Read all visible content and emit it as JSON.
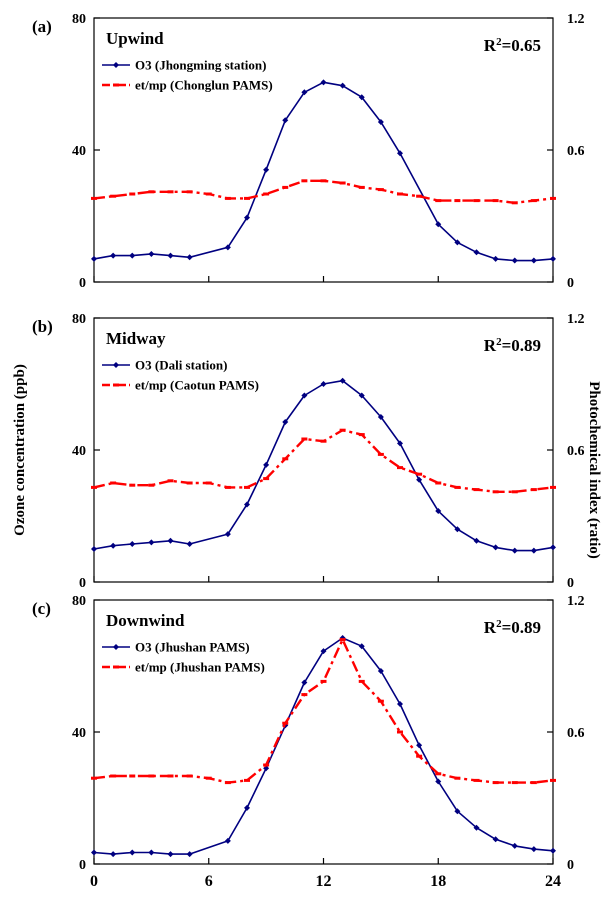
{
  "colors": {
    "o3": "#000080",
    "ratio": "#ff0000"
  },
  "figure": {
    "ylabel_left": "Ozone concentration (ppb)",
    "ylabel_right": "Photochemical index (ratio)",
    "xticks": [
      "0",
      "6",
      "12",
      "18",
      "24"
    ]
  },
  "chart_data": [
    {
      "type": "line",
      "panel_label": "(a)",
      "title": "Upwind",
      "r2": "R",
      "r2_sup": "2",
      "r2_value": "=0.65",
      "xlim": [
        0,
        24
      ],
      "ylim_left": [
        0,
        80
      ],
      "ylim_right": [
        0,
        1.2
      ],
      "yticks_left": [
        "0",
        "40",
        "80"
      ],
      "yticks_right": [
        "0",
        "0.6",
        "1.2"
      ],
      "legend_position": "top-left",
      "series": [
        {
          "name": "O3 (Jhongming station)",
          "axis": "left",
          "style": "solid-diamond",
          "x": [
            0,
            1,
            2,
            3,
            4,
            5,
            7,
            8,
            9,
            10,
            11,
            12,
            13,
            14,
            15,
            16,
            18,
            19,
            20,
            21,
            22,
            23,
            24
          ],
          "y": [
            7,
            8,
            8,
            8.5,
            8,
            7.5,
            10.5,
            19.5,
            34,
            49,
            57.5,
            60.5,
            59.5,
            56,
            48.5,
            39,
            17.5,
            12,
            9,
            7,
            6.5,
            6.5,
            7
          ]
        },
        {
          "name": "et/mp (Chonglun PAMS)",
          "axis": "right",
          "style": "dashdot-dash",
          "x": [
            0,
            1,
            2,
            3,
            4,
            5,
            6,
            7,
            8,
            9,
            10,
            11,
            12,
            13,
            14,
            15,
            16,
            17,
            18,
            19,
            20,
            21,
            22,
            23,
            24
          ],
          "y": [
            0.38,
            0.39,
            0.4,
            0.41,
            0.41,
            0.41,
            0.4,
            0.38,
            0.38,
            0.4,
            0.43,
            0.46,
            0.46,
            0.45,
            0.43,
            0.42,
            0.4,
            0.39,
            0.37,
            0.37,
            0.37,
            0.37,
            0.36,
            0.37,
            0.38
          ]
        }
      ]
    },
    {
      "type": "line",
      "panel_label": "(b)",
      "title": "Midway",
      "r2": "R",
      "r2_sup": "2",
      "r2_value": "=0.89",
      "xlim": [
        0,
        24
      ],
      "ylim_left": [
        0,
        80
      ],
      "ylim_right": [
        0,
        1.2
      ],
      "yticks_left": [
        "0",
        "40",
        "80"
      ],
      "yticks_right": [
        "0",
        "0.6",
        "1.2"
      ],
      "legend_position": "top-left",
      "series": [
        {
          "name": "O3 (Dali station)",
          "axis": "left",
          "style": "solid-diamond",
          "x": [
            0,
            1,
            2,
            3,
            4,
            5,
            7,
            8,
            9,
            10,
            11,
            12,
            13,
            14,
            15,
            16,
            17,
            18,
            19,
            20,
            21,
            22,
            23,
            24
          ],
          "y": [
            10,
            11,
            11.5,
            12,
            12.5,
            11.5,
            14.5,
            23.5,
            35.5,
            48.5,
            56.5,
            60,
            61,
            56.5,
            50,
            42,
            31,
            21.5,
            16,
            12.5,
            10.5,
            9.5,
            9.5,
            10.5
          ]
        },
        {
          "name": "et/mp (Caotun PAMS)",
          "axis": "right",
          "style": "dashdot-dash",
          "x": [
            0,
            1,
            2,
            3,
            4,
            5,
            6,
            7,
            8,
            9,
            10,
            11,
            12,
            13,
            14,
            15,
            16,
            17,
            18,
            19,
            20,
            21,
            22,
            23,
            24
          ],
          "y": [
            0.43,
            0.45,
            0.44,
            0.44,
            0.46,
            0.45,
            0.45,
            0.43,
            0.43,
            0.47,
            0.56,
            0.65,
            0.64,
            0.69,
            0.67,
            0.58,
            0.52,
            0.49,
            0.45,
            0.43,
            0.42,
            0.41,
            0.41,
            0.42,
            0.43
          ]
        }
      ]
    },
    {
      "type": "line",
      "panel_label": "(c)",
      "title": "Downwind",
      "r2": "R",
      "r2_sup": "2",
      "r2_value": "=0.89",
      "xlim": [
        0,
        24
      ],
      "ylim_left": [
        0,
        80
      ],
      "ylim_right": [
        0,
        1.2
      ],
      "yticks_left": [
        "0",
        "40",
        "80"
      ],
      "yticks_right": [
        "0",
        "0.6",
        "1.2"
      ],
      "legend_position": "top-left",
      "series": [
        {
          "name": "O3 (Jhushan PAMS)",
          "axis": "left",
          "style": "solid-diamond",
          "x": [
            0,
            1,
            2,
            3,
            4,
            5,
            7,
            8,
            9,
            10,
            11,
            12,
            13,
            14,
            15,
            16,
            17,
            18,
            19,
            20,
            21,
            22,
            23,
            24
          ],
          "y": [
            3.5,
            3,
            3.5,
            3.5,
            3,
            3,
            7,
            17,
            29,
            42,
            55,
            64.5,
            68.5,
            66,
            58.5,
            48.5,
            36,
            25,
            16,
            11,
            7.5,
            5.5,
            4.5,
            4
          ]
        },
        {
          "name": "et/mp (Jhushan PAMS)",
          "axis": "right",
          "style": "dashdot-dash",
          "x": [
            0,
            1,
            2,
            3,
            4,
            5,
            6,
            7,
            8,
            9,
            10,
            11,
            12,
            13,
            14,
            15,
            16,
            17,
            18,
            19,
            20,
            21,
            22,
            23,
            24
          ],
          "y": [
            0.39,
            0.4,
            0.4,
            0.4,
            0.4,
            0.4,
            0.39,
            0.37,
            0.38,
            0.45,
            0.64,
            0.77,
            0.83,
            1.02,
            0.83,
            0.74,
            0.6,
            0.49,
            0.41,
            0.39,
            0.38,
            0.37,
            0.37,
            0.37,
            0.38
          ]
        }
      ]
    }
  ]
}
